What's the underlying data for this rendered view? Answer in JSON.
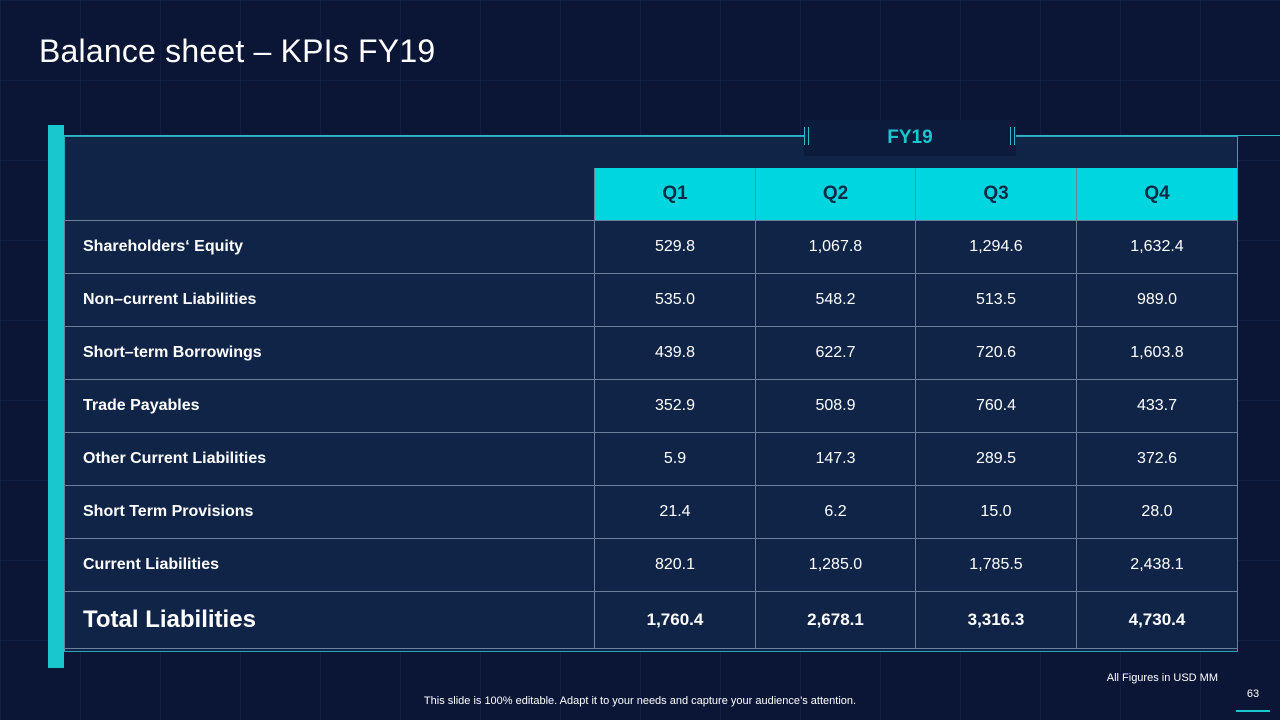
{
  "slide": {
    "title": "Balance sheet – KPIs FY19",
    "period_label": "FY19",
    "figures_note": "All Figures in USD MM",
    "footer": "This slide is 100% editable. Adapt it to your needs and capture your audience’s attention.",
    "page_number": "63"
  },
  "table": {
    "columns": [
      "Q1",
      "Q2",
      "Q3",
      "Q4"
    ],
    "rows": [
      {
        "label": "Shareholders‘ Equity",
        "values": [
          "529.8",
          "1,067.8",
          "1,294.6",
          "1,632.4"
        ]
      },
      {
        "label": "Non–current Liabilities",
        "values": [
          "535.0",
          "548.2",
          "513.5",
          "989.0"
        ]
      },
      {
        "label": "Short–term Borrowings",
        "values": [
          "439.8",
          "622.7",
          "720.6",
          "1,603.8"
        ]
      },
      {
        "label": "Trade Payables",
        "values": [
          "352.9",
          "508.9",
          "760.4",
          "433.7"
        ]
      },
      {
        "label": "Other Current Liabilities",
        "values": [
          "5.9",
          "147.3",
          "289.5",
          "372.6"
        ]
      },
      {
        "label": "Short Term Provisions",
        "values": [
          "21.4",
          "6.2",
          "15.0",
          "28.0"
        ]
      },
      {
        "label": "Current Liabilities",
        "values": [
          "820.1",
          "1,285.0",
          "1,785.5",
          "2,438.1"
        ]
      }
    ],
    "total": {
      "label": "Total Liabilities",
      "values": [
        "1,760.4",
        "2,678.1",
        "3,316.3",
        "4,730.4"
      ]
    }
  },
  "colors": {
    "background": "#0b1637",
    "accent": "#19c7cf",
    "header_fill": "#00d6e0",
    "panel": "#0f2447"
  }
}
